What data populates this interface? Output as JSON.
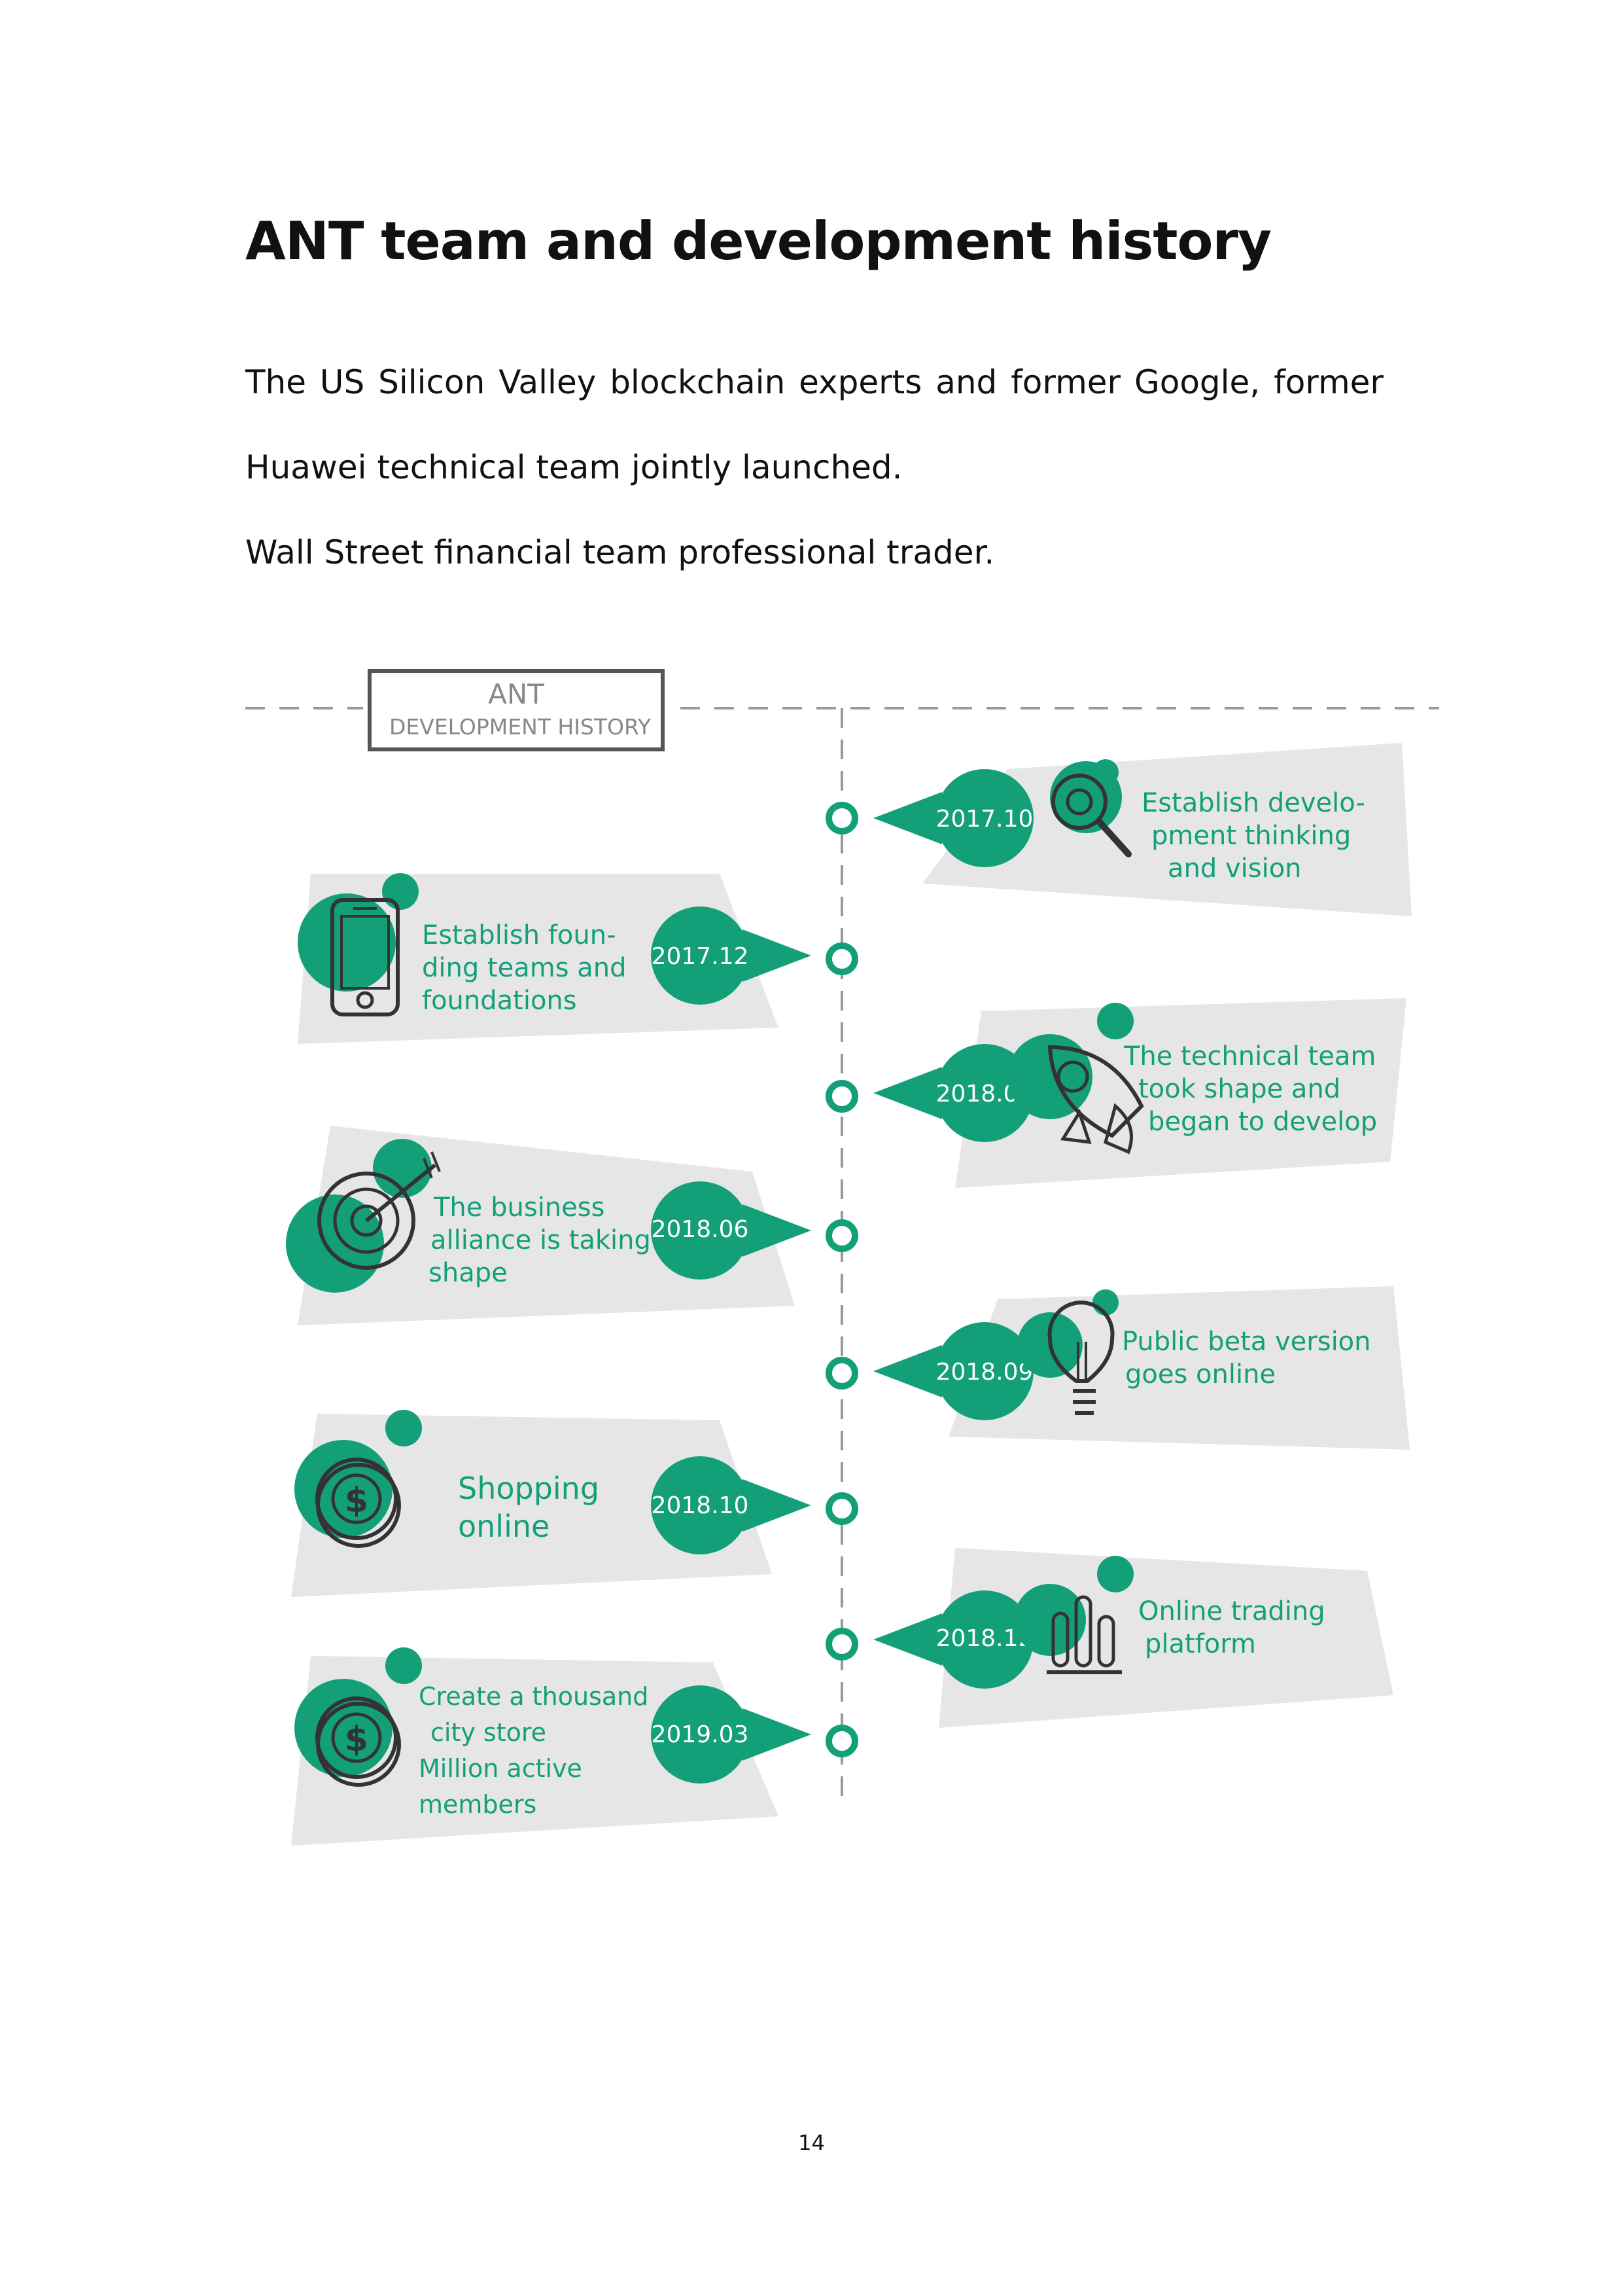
{
  "heading": "ANT team and development history",
  "paragraphs": [
    "The US Silicon Valley blockchain experts and former Google, former",
    "Huawei technical team jointly launched.",
    "Wall Street financial team professional trader."
  ],
  "timeline": {
    "header_line1": "ANT",
    "header_line2": "DEVELOPMENT HISTORY",
    "accent_color": "#13a078",
    "panel_color": "#e6e6e6",
    "events": [
      {
        "date": "2017.10",
        "lines": [
          "Establish develo-",
          "pment thinking",
          "and vision"
        ],
        "icon": "magnifier-icon"
      },
      {
        "date": "2017.12",
        "lines": [
          "Establish foun-",
          "ding teams and",
          "foundations"
        ],
        "icon": "smartphone-icon"
      },
      {
        "date": "2018.02",
        "lines": [
          "The technical team",
          "took shape and",
          "began to develop"
        ],
        "icon": "rocket-icon"
      },
      {
        "date": "2018.06",
        "lines": [
          "The business",
          "alliance is taking",
          "shape"
        ],
        "icon": "target-icon"
      },
      {
        "date": "2018.09",
        "lines": [
          "Public beta version",
          "goes online"
        ],
        "icon": "lightbulb-icon"
      },
      {
        "date": "2018.10",
        "lines": [
          "Shopping",
          "online"
        ],
        "icon": "coin-icon"
      },
      {
        "date": "2018.12",
        "lines": [
          "Online trading",
          "platform"
        ],
        "icon": "bar-chart-icon"
      },
      {
        "date": "2019.03",
        "lines": [
          "Create a thousand",
          "city store",
          "Million active",
          "members"
        ],
        "icon": "coin-icon"
      }
    ]
  },
  "page_number": "14"
}
